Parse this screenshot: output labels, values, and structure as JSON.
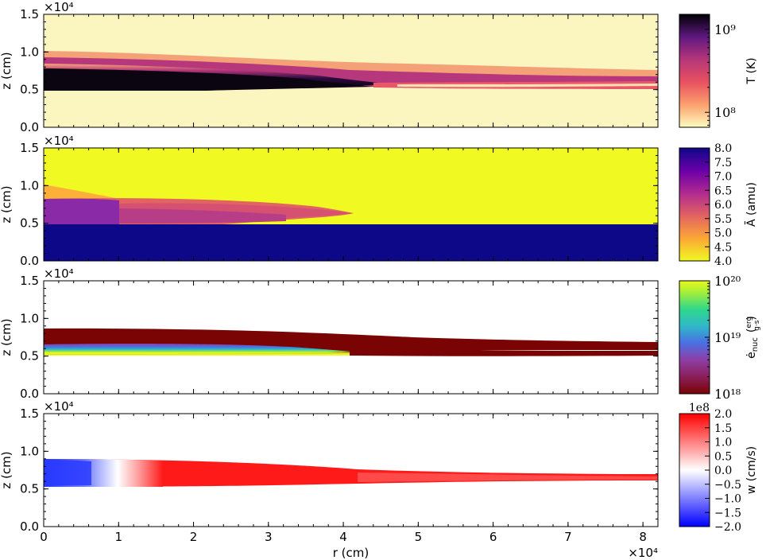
{
  "chart_data": [
    {
      "type": "heatmap",
      "ylabel": "z  (cm)",
      "y_offset_label": "×10⁴",
      "ylim": [
        0,
        1.5
      ],
      "xlim": [
        0,
        8.2
      ],
      "y_ticks": [
        "0.0",
        "0.5",
        "1.0",
        "1.5"
      ],
      "colorbar": {
        "label": "T  (K)",
        "scale": "log",
        "ticks": [
          {
            "value": 100000000.0,
            "label": "10⁸"
          },
          {
            "value": 1000000000.0,
            "label": "10⁹"
          }
        ],
        "colormap": "magma_r"
      },
      "features": {
        "hot_layer": {
          "z_bottom": 0.52,
          "z_top_at_r0": 0.98,
          "z_top_at_rmax": 0.75
        }
      }
    },
    {
      "type": "heatmap",
      "ylabel": "z  (cm)",
      "y_offset_label": "×10⁴",
      "ylim": [
        0,
        1.5
      ],
      "xlim": [
        0,
        8.2
      ],
      "y_ticks": [
        "0.0",
        "0.5",
        "1.0",
        "1.5"
      ],
      "colorbar": {
        "label": "Ā  (amu)",
        "scale": "linear",
        "range": [
          4.0,
          8.0
        ],
        "ticks": [
          "4.0",
          "4.5",
          "5.0",
          "5.5",
          "6.0",
          "6.5",
          "7.0",
          "7.5",
          "8.0"
        ],
        "colormap": "plasma_r"
      },
      "features": {
        "base_z": 0.5,
        "burned_front_r": 4.1
      }
    },
    {
      "type": "heatmap",
      "ylabel": "z  (cm)",
      "y_offset_label": "×10⁴",
      "ylim": [
        0,
        1.5
      ],
      "xlim": [
        0,
        8.2
      ],
      "y_ticks": [
        "0.0",
        "0.5",
        "1.0",
        "1.5"
      ],
      "colorbar": {
        "label_main": "ė",
        "label_sub": "nuc",
        "label_unit_num": "erg",
        "label_unit_den": "g·s",
        "scale": "log",
        "ticks": [
          {
            "value": 1e+18,
            "label": "10¹⁸"
          },
          {
            "value": 1e+19,
            "label": "10¹⁹"
          },
          {
            "value": 1e+20,
            "label": "10²⁰"
          }
        ],
        "colormap": "turbo_r"
      }
    },
    {
      "type": "heatmap",
      "ylabel": "z  (cm)",
      "y_offset_label": "×10⁴",
      "ylim": [
        0,
        1.5
      ],
      "xlim": [
        0,
        8.2
      ],
      "xlabel": "r  (cm)",
      "x_offset_label": "×10⁴",
      "x_ticks": [
        "0",
        "1",
        "2",
        "3",
        "4",
        "5",
        "6",
        "7",
        "8"
      ],
      "y_ticks": [
        "0.0",
        "0.5",
        "1.0",
        "1.5"
      ],
      "colorbar": {
        "label": "w  (cm/s)",
        "offset_label": "1e8",
        "scale": "linear",
        "range": [
          -2.0,
          2.0
        ],
        "ticks": [
          "−2.0",
          "−1.5",
          "−1.0",
          "−0.5",
          "0.0",
          "0.5",
          "1.0",
          "1.5",
          "2.0"
        ],
        "colormap": "bwr"
      }
    }
  ]
}
